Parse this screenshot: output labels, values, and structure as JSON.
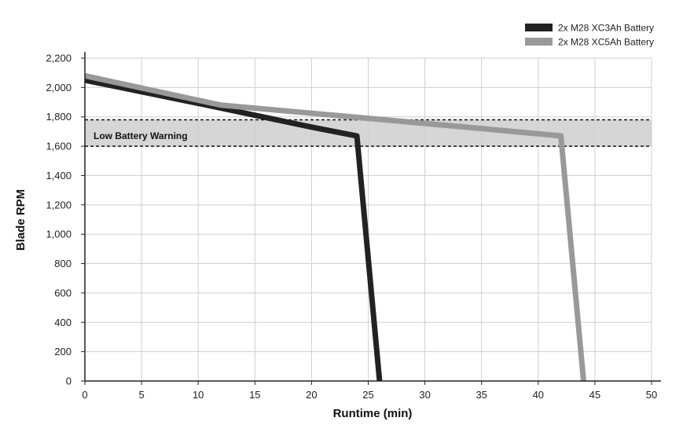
{
  "chart_data": {
    "type": "line",
    "xlabel": "Runtime (min)",
    "ylabel": "Blade RPM",
    "xlim": [
      0,
      50
    ],
    "ylim": [
      0,
      2200
    ],
    "xticks": [
      "0",
      "5",
      "10",
      "15",
      "20",
      "25",
      "30",
      "35",
      "40",
      "45",
      "50"
    ],
    "yticks": [
      "0",
      "200",
      "400",
      "600",
      "800",
      "1,000",
      "1,200",
      "1,400",
      "1,600",
      "1,800",
      "2,000",
      "2,200"
    ],
    "x_tick_values": [
      0,
      5,
      10,
      15,
      20,
      25,
      30,
      35,
      40,
      45,
      50
    ],
    "y_tick_values": [
      0,
      200,
      400,
      600,
      800,
      1000,
      1200,
      1400,
      1600,
      1800,
      2000,
      2200
    ],
    "grid": true,
    "legend_position": "top-right",
    "band": {
      "label": "Low Battery Warning",
      "y_from": 1600,
      "y_to": 1780,
      "color": "#d6d6d6"
    },
    "series": [
      {
        "name": "2x M28 XC3Ah Battery",
        "color": "#222222",
        "x": [
          0,
          12,
          20,
          24,
          26
        ],
        "y": [
          2050,
          1860,
          1730,
          1670,
          0
        ]
      },
      {
        "name": "2x M28 XC5Ah Battery",
        "color": "#999999",
        "x": [
          0,
          12,
          25,
          35,
          42,
          44
        ],
        "y": [
          2080,
          1880,
          1790,
          1720,
          1670,
          0
        ]
      }
    ]
  }
}
